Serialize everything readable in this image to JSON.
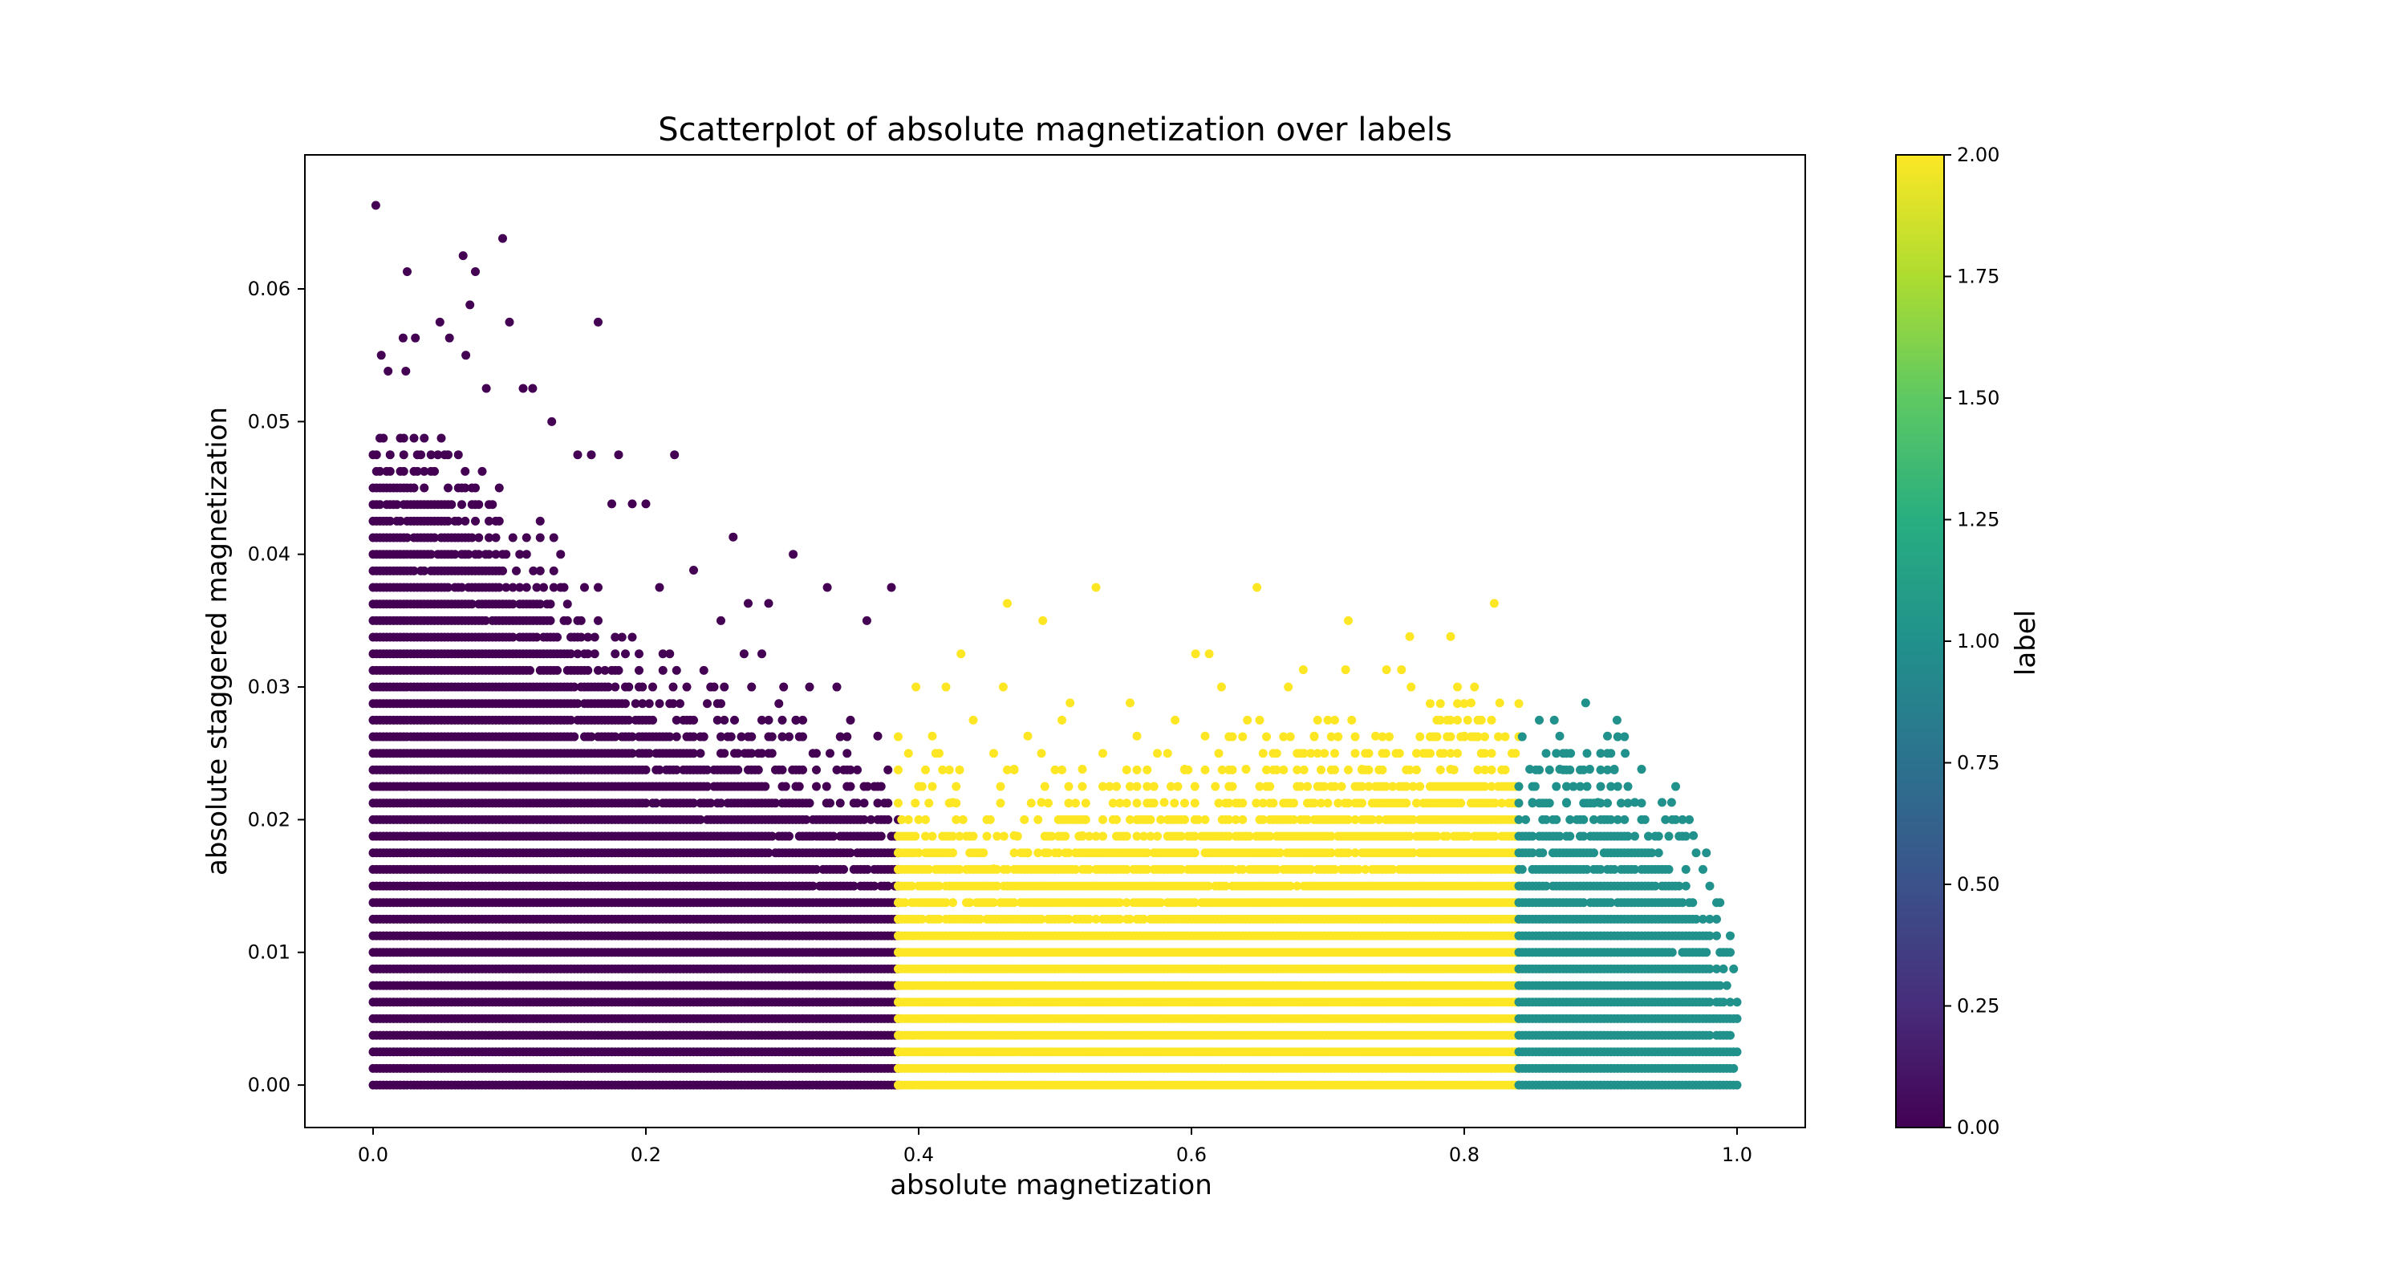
{
  "chart_data": {
    "type": "scatter",
    "title": "Scatterplot of absolute magnetization over labels",
    "xlabel": "absolute magnetization",
    "ylabel": "absolute staggered magnetization",
    "xlim": [
      -0.05,
      1.05
    ],
    "ylim": [
      -0.0032,
      0.0701
    ],
    "xticks": [
      "0.0",
      "0.2",
      "0.4",
      "0.6",
      "0.8",
      "1.0"
    ],
    "yticks": [
      "0.00",
      "0.01",
      "0.02",
      "0.03",
      "0.04",
      "0.05",
      "0.06"
    ],
    "grid": false,
    "colormap": "viridis",
    "colorbar": {
      "label": "label",
      "range": [
        0.0,
        2.0
      ],
      "ticks": [
        "0.00",
        "0.25",
        "0.50",
        "0.75",
        "1.00",
        "1.25",
        "1.50",
        "1.75",
        "2.00"
      ]
    },
    "label_colors": {
      "0": "#440154",
      "1": "#21918c",
      "2": "#fde725"
    },
    "label_boundaries_x": [
      0.385,
      0.84
    ],
    "point_spacing": {
      "x_step": 0.0025,
      "y_step": 0.00125
    },
    "series": [
      {
        "label": 0,
        "color": "#440154",
        "x_range": [
          0.0,
          0.385
        ],
        "dense_envelope_x": [
          0.0,
          0.05,
          0.1,
          0.15,
          0.2,
          0.25,
          0.3,
          0.35,
          0.385
        ],
        "dense_envelope_y": [
          0.046,
          0.044,
          0.038,
          0.032,
          0.027,
          0.024,
          0.022,
          0.02,
          0.018
        ],
        "outlier_points": [
          [
            0.002,
            0.0663
          ],
          [
            0.025,
            0.0613
          ],
          [
            0.066,
            0.0625
          ],
          [
            0.075,
            0.0613
          ],
          [
            0.095,
            0.0638
          ],
          [
            0.071,
            0.0588
          ],
          [
            0.049,
            0.0575
          ],
          [
            0.1,
            0.0575
          ],
          [
            0.165,
            0.0575
          ],
          [
            0.022,
            0.0563
          ],
          [
            0.031,
            0.0563
          ],
          [
            0.056,
            0.0563
          ],
          [
            0.068,
            0.055
          ],
          [
            0.006,
            0.055
          ],
          [
            0.024,
            0.0538
          ],
          [
            0.011,
            0.0538
          ],
          [
            0.083,
            0.0525
          ],
          [
            0.11,
            0.0525
          ],
          [
            0.117,
            0.0525
          ],
          [
            0.131,
            0.05
          ],
          [
            0.15,
            0.0475
          ],
          [
            0.18,
            0.0475
          ],
          [
            0.221,
            0.0475
          ],
          [
            0.16,
            0.0475
          ],
          [
            0.175,
            0.0438
          ],
          [
            0.19,
            0.0438
          ],
          [
            0.2,
            0.0438
          ],
          [
            0.264,
            0.0413
          ],
          [
            0.308,
            0.04
          ],
          [
            0.235,
            0.0388
          ],
          [
            0.333,
            0.0375
          ],
          [
            0.38,
            0.0375
          ],
          [
            0.21,
            0.0375
          ],
          [
            0.275,
            0.0363
          ],
          [
            0.29,
            0.0363
          ],
          [
            0.362,
            0.035
          ],
          [
            0.255,
            0.035
          ],
          [
            0.272,
            0.0325
          ],
          [
            0.285,
            0.0325
          ],
          [
            0.301,
            0.03
          ],
          [
            0.32,
            0.03
          ],
          [
            0.34,
            0.03
          ],
          [
            0.35,
            0.0275
          ],
          [
            0.37,
            0.0263
          ],
          [
            0.31,
            0.0275
          ]
        ]
      },
      {
        "label": 2,
        "color": "#fde725",
        "x_range": [
          0.385,
          0.84
        ],
        "dense_envelope_x": [
          0.39,
          0.45,
          0.5,
          0.55,
          0.6,
          0.65,
          0.7,
          0.75,
          0.8,
          0.84
        ],
        "dense_envelope_y": [
          0.019,
          0.016,
          0.0175,
          0.018,
          0.019,
          0.02,
          0.021,
          0.022,
          0.023,
          0.023
        ],
        "outlier_points": [
          [
            0.465,
            0.0363
          ],
          [
            0.53,
            0.0375
          ],
          [
            0.648,
            0.0375
          ],
          [
            0.822,
            0.0363
          ],
          [
            0.491,
            0.035
          ],
          [
            0.715,
            0.035
          ],
          [
            0.76,
            0.0338
          ],
          [
            0.79,
            0.0338
          ],
          [
            0.431,
            0.0325
          ],
          [
            0.603,
            0.0325
          ],
          [
            0.613,
            0.0325
          ],
          [
            0.743,
            0.0313
          ],
          [
            0.713,
            0.0313
          ],
          [
            0.682,
            0.0313
          ],
          [
            0.754,
            0.0313
          ],
          [
            0.398,
            0.03
          ],
          [
            0.42,
            0.03
          ],
          [
            0.462,
            0.03
          ],
          [
            0.622,
            0.03
          ],
          [
            0.671,
            0.03
          ],
          [
            0.761,
            0.03
          ],
          [
            0.826,
            0.0288
          ],
          [
            0.511,
            0.0288
          ],
          [
            0.555,
            0.0288
          ],
          [
            0.805,
            0.0288
          ],
          [
            0.44,
            0.0275
          ],
          [
            0.505,
            0.0275
          ],
          [
            0.588,
            0.0275
          ],
          [
            0.641,
            0.0275
          ],
          [
            0.7,
            0.0275
          ],
          [
            0.78,
            0.0275
          ],
          [
            0.41,
            0.0263
          ],
          [
            0.48,
            0.0263
          ],
          [
            0.56,
            0.0263
          ],
          [
            0.61,
            0.0263
          ],
          [
            0.69,
            0.0263
          ],
          [
            0.735,
            0.0263
          ],
          [
            0.8,
            0.0263
          ],
          [
            0.415,
            0.025
          ],
          [
            0.455,
            0.025
          ],
          [
            0.535,
            0.025
          ],
          [
            0.575,
            0.025
          ],
          [
            0.62,
            0.025
          ],
          [
            0.66,
            0.025
          ],
          [
            0.705,
            0.025
          ],
          [
            0.77,
            0.025
          ],
          [
            0.815,
            0.025
          ],
          [
            0.47,
            0.0238
          ],
          [
            0.52,
            0.0238
          ],
          [
            0.595,
            0.0238
          ],
          [
            0.64,
            0.0238
          ],
          [
            0.725,
            0.0238
          ],
          [
            0.79,
            0.0238
          ],
          [
            0.425,
            0.0213
          ],
          [
            0.49,
            0.0213
          ],
          [
            0.545,
            0.0225
          ],
          [
            0.58,
            0.0213
          ],
          [
            0.45,
            0.02
          ],
          [
            0.505,
            0.02
          ],
          [
            0.56,
            0.02
          ],
          [
            0.47,
            0.0188
          ],
          [
            0.52,
            0.0188
          ],
          [
            0.44,
            0.0175
          ],
          [
            0.48,
            0.0175
          ],
          [
            0.455,
            0.0163
          ]
        ]
      },
      {
        "label": 1,
        "color": "#21918c",
        "x_range": [
          0.84,
          1.0
        ],
        "dense_envelope_x": [
          0.842,
          0.88,
          0.92,
          0.95,
          0.97,
          0.985,
          1.0
        ],
        "dense_envelope_y": [
          0.02,
          0.0195,
          0.019,
          0.016,
          0.0125,
          0.009,
          0.0015
        ],
        "outlier_points": [
          [
            0.855,
            0.0275
          ],
          [
            0.866,
            0.0275
          ],
          [
            0.889,
            0.0288
          ],
          [
            0.912,
            0.0275
          ],
          [
            0.87,
            0.0263
          ],
          [
            0.905,
            0.0263
          ],
          [
            0.86,
            0.025
          ],
          [
            0.878,
            0.025
          ],
          [
            0.9,
            0.025
          ],
          [
            0.918,
            0.025
          ],
          [
            0.848,
            0.0238
          ],
          [
            0.87,
            0.0238
          ],
          [
            0.892,
            0.0238
          ],
          [
            0.91,
            0.0238
          ],
          [
            0.93,
            0.0238
          ],
          [
            0.852,
            0.0225
          ],
          [
            0.88,
            0.0225
          ],
          [
            0.9,
            0.0225
          ],
          [
            0.92,
            0.0225
          ],
          [
            0.955,
            0.0225
          ],
          [
            0.85,
            0.0213
          ],
          [
            0.875,
            0.0213
          ],
          [
            0.898,
            0.0213
          ],
          [
            0.925,
            0.0213
          ],
          [
            0.945,
            0.0213
          ],
          [
            0.952,
            0.0213
          ],
          [
            0.965,
            0.02
          ],
          [
            0.968,
            0.0188
          ],
          [
            0.97,
            0.0175
          ]
        ]
      }
    ]
  }
}
